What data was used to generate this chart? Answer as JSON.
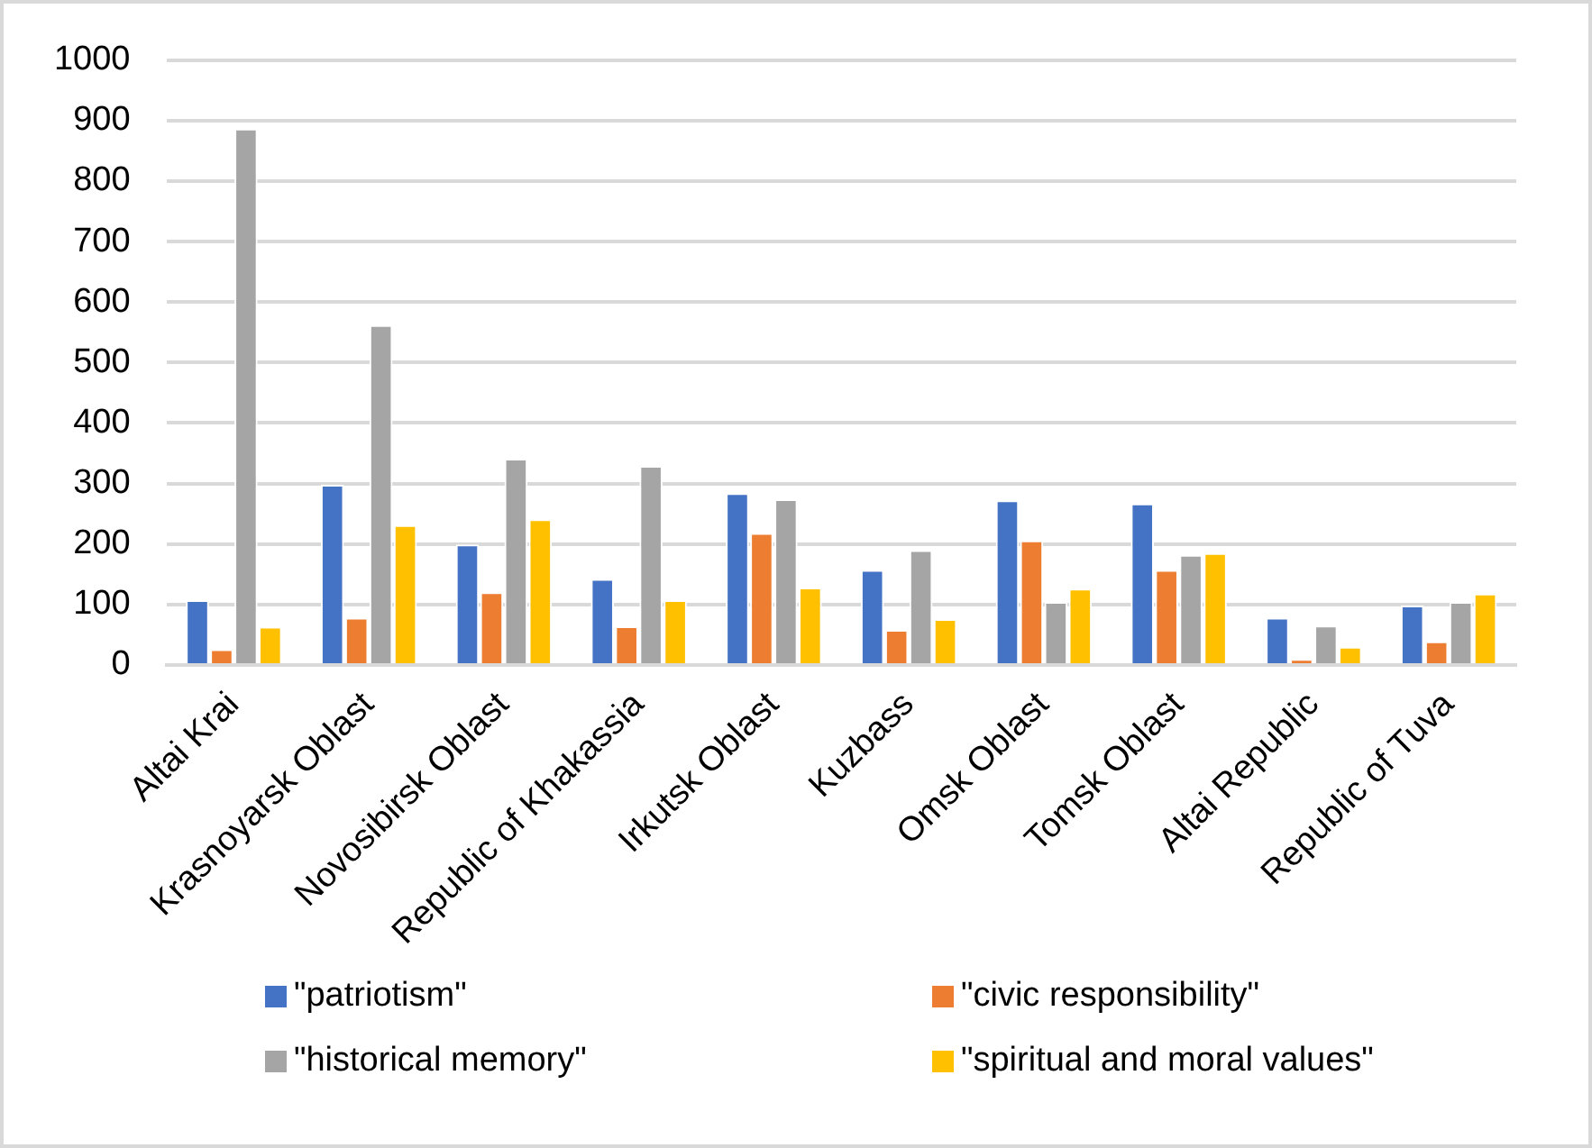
{
  "chart_data": {
    "type": "bar",
    "categories": [
      "Altai Krai",
      "Krasnoyarsk Oblast",
      "Novosibirsk Oblast",
      "Republic of Khakassia",
      "Irkutsk Oblast",
      "Kuzbass",
      "Omsk Oblast",
      "Tomsk Oblast",
      "Altai Republic",
      "Republic of Tuva"
    ],
    "series": [
      {
        "name": "\"patriotism\"",
        "color": "#4472c4",
        "values": [
          107,
          298,
          199,
          142,
          284,
          157,
          272,
          267,
          78,
          98
        ]
      },
      {
        "name": "\"civic responsibility\"",
        "color": "#ed7d31",
        "values": [
          26,
          78,
          120,
          64,
          218,
          58,
          206,
          157,
          10,
          39
        ]
      },
      {
        "name": "\"historical memory\"",
        "color": "#a5a5a5",
        "values": [
          887,
          562,
          341,
          329,
          274,
          190,
          104,
          182,
          65,
          104
        ]
      },
      {
        "name": "\"spiritual and moral values\"",
        "color": "#ffc000",
        "values": [
          63,
          231,
          241,
          107,
          128,
          76,
          126,
          185,
          30,
          118
        ]
      }
    ],
    "ylim": [
      0,
      1000
    ],
    "yticks": [
      0,
      100,
      200,
      300,
      400,
      500,
      600,
      700,
      800,
      900,
      1000
    ],
    "grid": "y",
    "legend": "bottom"
  }
}
